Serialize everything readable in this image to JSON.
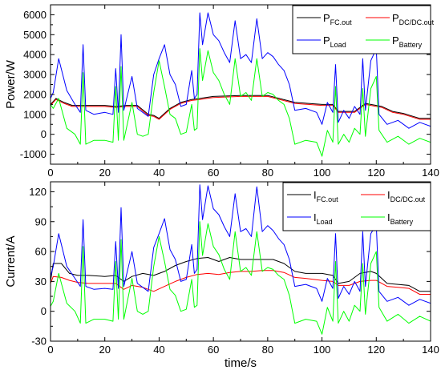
{
  "chart_data": [
    {
      "type": "line",
      "ylabel": "Power/W",
      "xlabel": "",
      "xlim": [
        0,
        140
      ],
      "ylim": [
        -1500,
        6500
      ],
      "xticks": [
        0,
        20,
        40,
        60,
        80,
        100,
        120,
        140
      ],
      "yticks": [
        -1000,
        0,
        1000,
        2000,
        3000,
        4000,
        5000,
        6000
      ],
      "legend_position": "top-right",
      "grid": false,
      "series": [
        {
          "name": "P",
          "name_sub": "FC.out",
          "color": "#000000",
          "x": [
            0,
            2,
            5,
            8,
            12,
            20,
            24,
            28,
            32,
            36,
            38,
            40,
            44,
            48,
            52,
            55,
            60,
            70,
            80,
            90,
            95,
            100,
            104,
            106,
            112,
            116,
            122,
            126,
            130,
            136,
            140
          ],
          "y": [
            1500,
            1800,
            1600,
            1450,
            1450,
            1450,
            1400,
            1450,
            1450,
            1000,
            950,
            800,
            1300,
            1600,
            1750,
            1800,
            1900,
            1950,
            1950,
            1600,
            1550,
            1500,
            1500,
            1150,
            1150,
            1550,
            1400,
            1150,
            1050,
            800,
            800
          ]
        },
        {
          "name": "P",
          "name_sub": "DC/DC.out",
          "color": "#ff0000",
          "x": [
            0,
            2,
            5,
            8,
            12,
            20,
            24,
            28,
            32,
            36,
            38,
            40,
            44,
            48,
            52,
            55,
            60,
            70,
            80,
            90,
            95,
            100,
            104,
            106,
            112,
            116,
            122,
            126,
            130,
            136,
            140
          ],
          "y": [
            1450,
            1750,
            1550,
            1400,
            1400,
            1400,
            1350,
            1400,
            1400,
            950,
            900,
            750,
            1250,
            1550,
            1700,
            1750,
            1850,
            1900,
            1900,
            1550,
            1500,
            1450,
            1450,
            1100,
            1100,
            1500,
            1350,
            1100,
            1000,
            750,
            750
          ]
        },
        {
          "name": "P",
          "name_sub": "Load",
          "color": "#0000ff",
          "x": [
            0,
            1,
            3,
            6,
            9,
            11,
            12,
            13,
            16,
            20,
            23,
            24,
            25,
            26,
            27,
            30,
            32,
            34,
            36,
            38,
            40,
            42,
            44,
            46,
            48,
            50,
            52,
            53,
            54,
            55,
            56,
            58,
            60,
            62,
            64,
            66,
            68,
            70,
            72,
            74,
            76,
            78,
            80,
            82,
            84,
            86,
            88,
            90,
            94,
            98,
            100,
            102,
            104,
            105,
            106,
            108,
            110,
            112,
            114,
            115,
            116,
            118,
            120,
            121,
            124,
            128,
            132,
            136,
            140
          ],
          "y": [
            1800,
            2100,
            3800,
            2200,
            1500,
            1100,
            4500,
            1200,
            1000,
            1100,
            1000,
            3300,
            1100,
            5000,
            1200,
            2900,
            1300,
            1100,
            900,
            3000,
            3800,
            4500,
            3000,
            2500,
            1400,
            1500,
            3200,
            1800,
            2000,
            6100,
            4500,
            6100,
            5000,
            4700,
            4100,
            3600,
            5700,
            3800,
            4000,
            3600,
            5800,
            3800,
            4100,
            3900,
            3500,
            3200,
            2500,
            1200,
            1300,
            1100,
            500,
            1600,
            1100,
            3500,
            600,
            1200,
            800,
            1400,
            1000,
            3800,
            1200,
            3700,
            4300,
            1000,
            500,
            700,
            300,
            600,
            400
          ]
        },
        {
          "name": "P",
          "name_sub": "Battery",
          "color": "#00ff00",
          "x": [
            0,
            1,
            3,
            6,
            9,
            11,
            12,
            13,
            16,
            20,
            23,
            24,
            25,
            26,
            27,
            30,
            32,
            34,
            36,
            38,
            40,
            42,
            44,
            46,
            48,
            50,
            52,
            53,
            54,
            55,
            56,
            58,
            60,
            62,
            64,
            66,
            68,
            70,
            72,
            74,
            76,
            78,
            80,
            82,
            84,
            86,
            88,
            90,
            94,
            98,
            100,
            102,
            104,
            105,
            106,
            108,
            110,
            112,
            114,
            115,
            116,
            118,
            120,
            121,
            124,
            128,
            132,
            136,
            140
          ],
          "y": [
            1500,
            1300,
            1800,
            300,
            0,
            -500,
            3100,
            -500,
            -300,
            -300,
            -400,
            2400,
            -300,
            3400,
            -300,
            1600,
            0,
            -100,
            0,
            2100,
            3700,
            2400,
            1000,
            800,
            0,
            100,
            1500,
            200,
            300,
            4300,
            2700,
            4200,
            3100,
            2700,
            2000,
            1500,
            3800,
            1900,
            2100,
            1700,
            3800,
            1900,
            2100,
            2000,
            1700,
            1500,
            800,
            -500,
            -300,
            -400,
            -1100,
            200,
            -400,
            2400,
            -500,
            0,
            -400,
            300,
            0,
            2300,
            -100,
            2300,
            2900,
            200,
            -400,
            -100,
            -500,
            -200,
            -400
          ]
        }
      ]
    },
    {
      "type": "line",
      "ylabel": "Current/A",
      "xlabel": "time/s",
      "xlim": [
        0,
        140
      ],
      "ylim": [
        -30,
        130
      ],
      "xticks": [
        0,
        20,
        40,
        60,
        80,
        100,
        120,
        140
      ],
      "yticks": [
        -30,
        0,
        30,
        60,
        90,
        120
      ],
      "legend_position": "top-right",
      "grid": false,
      "series": [
        {
          "name": "I",
          "name_sub": "FC.out",
          "color": "#000000",
          "x": [
            0,
            1,
            4,
            7,
            10,
            14,
            20,
            24,
            27,
            30,
            34,
            38,
            42,
            46,
            50,
            54,
            58,
            62,
            66,
            70,
            74,
            78,
            82,
            86,
            90,
            94,
            100,
            104,
            106,
            110,
            114,
            118,
            120,
            124,
            128,
            132,
            136,
            140
          ],
          "y": [
            30,
            48,
            48,
            38,
            36,
            36,
            35,
            36,
            30,
            35,
            38,
            36,
            40,
            46,
            50,
            53,
            54,
            50,
            54,
            52,
            52,
            52,
            52,
            48,
            40,
            38,
            38,
            36,
            28,
            30,
            38,
            40,
            38,
            28,
            27,
            26,
            20,
            20
          ]
        },
        {
          "name": "I",
          "name_sub": "DC/DC.out",
          "color": "#ff0000",
          "x": [
            0,
            1,
            4,
            7,
            10,
            14,
            20,
            24,
            27,
            30,
            34,
            38,
            42,
            46,
            50,
            54,
            58,
            62,
            66,
            70,
            74,
            78,
            82,
            86,
            90,
            94,
            100,
            104,
            106,
            110,
            114,
            118,
            120,
            124,
            128,
            132,
            136,
            140
          ],
          "y": [
            28,
            35,
            34,
            31,
            29,
            28,
            28,
            28,
            22,
            26,
            24,
            20,
            25,
            30,
            34,
            37,
            38,
            37,
            39,
            40,
            40,
            41,
            41,
            39,
            34,
            33,
            31,
            30,
            26,
            26,
            30,
            31,
            31,
            25,
            24,
            23,
            17,
            17
          ]
        },
        {
          "name": "I",
          "name_sub": "Load",
          "color": "#0000ff",
          "x": [
            0,
            1,
            3,
            6,
            9,
            11,
            12,
            13,
            16,
            20,
            23,
            24,
            25,
            26,
            27,
            30,
            32,
            34,
            36,
            38,
            40,
            42,
            44,
            46,
            48,
            50,
            52,
            53,
            54,
            55,
            56,
            58,
            60,
            62,
            64,
            66,
            68,
            70,
            72,
            74,
            76,
            78,
            80,
            82,
            84,
            86,
            88,
            90,
            94,
            98,
            100,
            102,
            104,
            105,
            106,
            108,
            110,
            112,
            114,
            115,
            116,
            118,
            120,
            121,
            124,
            128,
            132,
            136,
            140
          ],
          "y": [
            35,
            45,
            78,
            45,
            33,
            25,
            92,
            25,
            22,
            23,
            22,
            70,
            23,
            104,
            25,
            60,
            28,
            24,
            20,
            64,
            78,
            93,
            62,
            52,
            30,
            32,
            67,
            38,
            42,
            127,
            92,
            126,
            103,
            97,
            85,
            75,
            118,
            80,
            83,
            75,
            125,
            80,
            86,
            81,
            73,
            67,
            52,
            25,
            27,
            23,
            10,
            33,
            23,
            78,
            13,
            25,
            17,
            30,
            20,
            80,
            25,
            78,
            87,
            20,
            10,
            14,
            6,
            12,
            8
          ]
        },
        {
          "name": "I",
          "name_sub": "Battery",
          "color": "#00ff00",
          "x": [
            0,
            1,
            3,
            6,
            9,
            11,
            12,
            13,
            16,
            20,
            23,
            24,
            25,
            26,
            27,
            30,
            32,
            34,
            36,
            38,
            40,
            42,
            44,
            46,
            48,
            50,
            52,
            53,
            54,
            55,
            56,
            58,
            60,
            62,
            64,
            66,
            68,
            70,
            72,
            74,
            76,
            78,
            80,
            82,
            84,
            86,
            88,
            90,
            94,
            98,
            100,
            102,
            104,
            105,
            106,
            108,
            110,
            112,
            114,
            115,
            116,
            118,
            120,
            121,
            124,
            128,
            132,
            136,
            140
          ],
          "y": [
            5,
            10,
            38,
            8,
            0,
            -12,
            65,
            -12,
            -8,
            -8,
            -10,
            50,
            -8,
            72,
            -8,
            33,
            0,
            -3,
            0,
            45,
            75,
            50,
            22,
            16,
            0,
            2,
            32,
            4,
            6,
            90,
            56,
            88,
            65,
            57,
            42,
            32,
            80,
            40,
            44,
            36,
            80,
            40,
            44,
            42,
            36,
            32,
            16,
            -12,
            -8,
            -10,
            -23,
            4,
            -10,
            50,
            -12,
            0,
            -10,
            6,
            0,
            48,
            -3,
            48,
            60,
            4,
            -10,
            -3,
            -12,
            -5,
            -10
          ]
        }
      ]
    }
  ]
}
